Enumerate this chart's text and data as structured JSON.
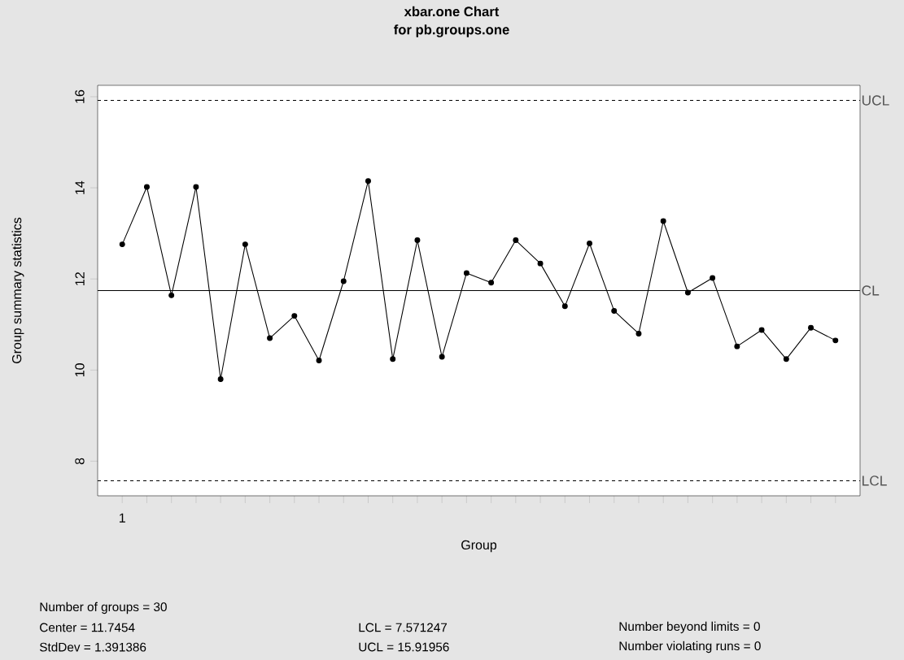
{
  "chart_data": {
    "type": "line",
    "title": "xbar.one Chart",
    "subtitle": "for pb.groups.one",
    "xlabel": "Group",
    "ylabel": "Group summary statistics",
    "categories": [
      "1",
      null,
      null,
      null,
      null,
      null,
      null,
      null,
      null,
      null,
      null,
      null,
      null,
      null,
      null,
      null,
      null,
      null,
      null,
      null,
      null,
      null,
      null,
      null,
      null,
      null,
      null,
      null,
      null,
      null
    ],
    "series": [
      {
        "color": "#000000",
        "values": [
          12.76,
          14.02,
          11.64,
          14.02,
          9.8,
          12.76,
          10.7,
          11.19,
          10.21,
          11.95,
          14.15,
          10.24,
          12.85,
          10.29,
          12.13,
          11.92,
          12.85,
          12.34,
          11.4,
          12.78,
          11.3,
          10.8,
          13.27,
          11.7,
          12.02,
          10.52,
          10.88,
          10.24,
          10.93,
          10.65
        ]
      }
    ],
    "ylim": [
      7.24,
      16.25
    ],
    "yticks": [
      8,
      10,
      12,
      14,
      16
    ],
    "marker": "circle",
    "line_style": "solid",
    "grid": false,
    "ref_lines": [
      {
        "axis": "y",
        "value": 15.91956,
        "label": "UCL",
        "color": "#000000",
        "line_style": "dashed"
      },
      {
        "axis": "y",
        "value": 11.7454,
        "label": "CL",
        "color": "#000000",
        "line_style": "solid"
      },
      {
        "axis": "y",
        "value": 7.571247,
        "label": "LCL",
        "color": "#000000",
        "line_style": "dashed"
      }
    ],
    "annotations": [
      "Number of groups = 30",
      "Center = 11.7454",
      "StdDev = 1.391386",
      "LCL = 7.571247",
      "UCL = 15.91956",
      "Number beyond limits = 0",
      "Number violating runs = 0"
    ]
  }
}
